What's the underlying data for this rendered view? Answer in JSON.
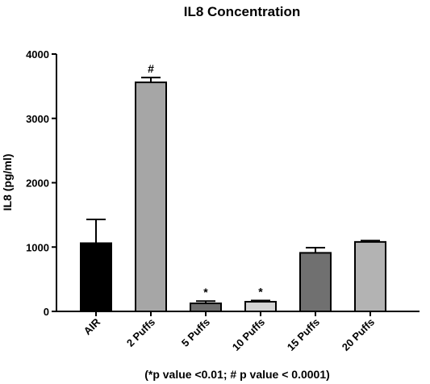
{
  "chart_data": {
    "type": "bar",
    "title": "IL8 Concentration",
    "xlabel": "",
    "ylabel": "IL8 (pg/ml)",
    "ylim": [
      0,
      4000
    ],
    "yticks": [
      0,
      1000,
      2000,
      3000,
      4000
    ],
    "categories": [
      "AIR",
      "2 Puffs",
      "5 Puffs",
      "10 Puffs",
      "15 Puffs",
      "20 Puffs"
    ],
    "values": [
      1060,
      3560,
      125,
      150,
      910,
      1080
    ],
    "errors": [
      370,
      75,
      35,
      20,
      80,
      20
    ],
    "significance": [
      "",
      "#",
      "*",
      "*",
      "",
      ""
    ],
    "colors": [
      "#000000",
      "#a6a6a6",
      "#6e6e6e",
      "#d4d4d4",
      "#707070",
      "#b3b3b3"
    ],
    "footnote": "(*p value <0.01; # p value < 0.0001)"
  }
}
